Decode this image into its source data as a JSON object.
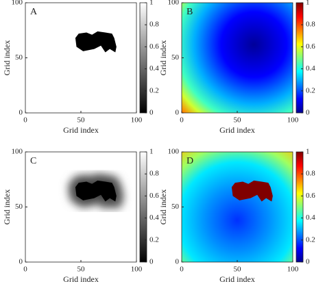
{
  "chart_data": [
    {
      "type": "heatmap",
      "panel_label": "A",
      "xlabel": "Grid index",
      "ylabel": "Grid index",
      "xlim": [
        0,
        100
      ],
      "ylim": [
        0,
        100
      ],
      "xticks": [
        0,
        50,
        100
      ],
      "yticks": [
        0,
        50,
        100
      ],
      "colormap": "binary",
      "colorbar": {
        "lim": [
          0,
          1
        ],
        "ticks": [
          0,
          0.2,
          0.4,
          0.6,
          0.8,
          1
        ]
      }
    },
    {
      "type": "heatmap",
      "panel_label": "B",
      "xlabel": "Grid index",
      "ylabel": "Grid index",
      "xlim": [
        0,
        100
      ],
      "ylim": [
        0,
        100
      ],
      "xticks": [
        0,
        50,
        100
      ],
      "yticks": [
        0,
        50,
        100
      ],
      "colormap": "jet-radial",
      "colorbar": {
        "lim": [
          0,
          1
        ],
        "ticks": [
          0,
          0.2,
          0.4,
          0.6,
          0.8,
          1
        ]
      }
    },
    {
      "type": "heatmap",
      "panel_label": "C",
      "xlabel": "Grid index",
      "ylabel": "Grid index",
      "xlim": [
        0,
        100
      ],
      "ylim": [
        0,
        100
      ],
      "xticks": [
        0,
        50,
        100
      ],
      "yticks": [
        0,
        50,
        100
      ],
      "colormap": "gray-blur",
      "colorbar": {
        "lim": [
          0,
          1
        ],
        "ticks": [
          0,
          0.2,
          0.4,
          0.6,
          0.8,
          1
        ]
      }
    },
    {
      "type": "heatmap",
      "panel_label": "D",
      "xlabel": "Grid index",
      "ylabel": "Grid index",
      "xlim": [
        0,
        100
      ],
      "ylim": [
        0,
        100
      ],
      "xticks": [
        0,
        50,
        100
      ],
      "yticks": [
        0,
        50,
        100
      ],
      "colormap": "jet-blob",
      "colorbar": {
        "lim": [
          0,
          1
        ],
        "ticks": [
          0,
          0.2,
          0.4,
          0.6,
          0.8,
          1
        ]
      }
    }
  ]
}
